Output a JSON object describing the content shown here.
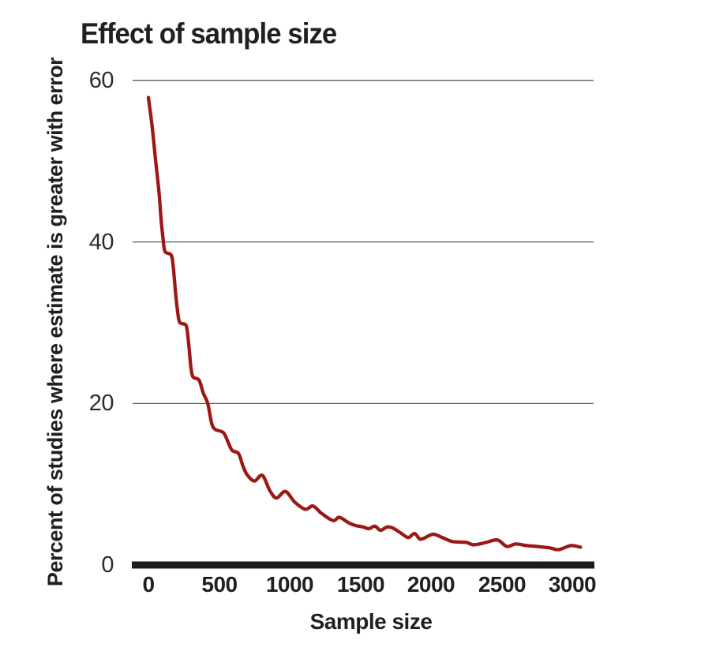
{
  "figure": {
    "background": "#ffffff"
  },
  "colors": {
    "line": "#9d1714",
    "axis_bar": "#1f1d1c",
    "gridline": "#454545",
    "title_text": "#231f20",
    "tick_text": "#2e2b2c"
  },
  "chart_data": {
    "type": "line",
    "title": "Effect of sample size",
    "xlabel": "Sample size",
    "ylabel": "Percent of studies where estimate is greater with error",
    "x_ticks": [
      0,
      500,
      1000,
      1500,
      2000,
      2500,
      3000
    ],
    "y_ticks": [
      0,
      20,
      40,
      60
    ],
    "xlim": [
      0,
      3060
    ],
    "ylim": [
      0,
      60
    ],
    "grid": "horizontal gridlines at y=20,40,60; heavy black baseline at y=0",
    "legend": "none",
    "line_color": "#9d1714",
    "series": [
      {
        "name": "percent of studies where estimate is greater with error",
        "points": [
          [
            0,
            57.9
          ],
          [
            25,
            54.5
          ],
          [
            50,
            50.3
          ],
          [
            75,
            46.2
          ],
          [
            90,
            42.8
          ],
          [
            105,
            40.2
          ],
          [
            118,
            38.8
          ],
          [
            160,
            38.4
          ],
          [
            175,
            37.1
          ],
          [
            195,
            33.2
          ],
          [
            215,
            30.4
          ],
          [
            235,
            29.9
          ],
          [
            268,
            29.6
          ],
          [
            285,
            27.4
          ],
          [
            300,
            24.6
          ],
          [
            315,
            23.3
          ],
          [
            358,
            22.9
          ],
          [
            388,
            21.3
          ],
          [
            420,
            20.0
          ],
          [
            447,
            17.6
          ],
          [
            472,
            16.8
          ],
          [
            530,
            16.4
          ],
          [
            562,
            15.3
          ],
          [
            592,
            14.2
          ],
          [
            638,
            13.8
          ],
          [
            668,
            12.3
          ],
          [
            698,
            11.2
          ],
          [
            750,
            10.4
          ],
          [
            806,
            11.1
          ],
          [
            860,
            9.2
          ],
          [
            906,
            8.3
          ],
          [
            970,
            9.1
          ],
          [
            1035,
            7.8
          ],
          [
            1110,
            6.9
          ],
          [
            1165,
            7.3
          ],
          [
            1225,
            6.4
          ],
          [
            1307,
            5.5
          ],
          [
            1352,
            5.9
          ],
          [
            1420,
            5.2
          ],
          [
            1465,
            4.9
          ],
          [
            1520,
            4.7
          ],
          [
            1560,
            4.5
          ],
          [
            1603,
            4.8
          ],
          [
            1643,
            4.3
          ],
          [
            1688,
            4.7
          ],
          [
            1727,
            4.6
          ],
          [
            1783,
            4.0
          ],
          [
            1838,
            3.4
          ],
          [
            1884,
            3.9
          ],
          [
            1928,
            3.2
          ],
          [
            2012,
            3.8
          ],
          [
            2080,
            3.4
          ],
          [
            2152,
            2.9
          ],
          [
            2247,
            2.8
          ],
          [
            2303,
            2.5
          ],
          [
            2392,
            2.8
          ],
          [
            2470,
            3.1
          ],
          [
            2537,
            2.3
          ],
          [
            2599,
            2.6
          ],
          [
            2677,
            2.4
          ],
          [
            2750,
            2.3
          ],
          [
            2845,
            2.1
          ],
          [
            2902,
            1.9
          ],
          [
            2990,
            2.4
          ],
          [
            3058,
            2.2
          ]
        ]
      }
    ]
  }
}
